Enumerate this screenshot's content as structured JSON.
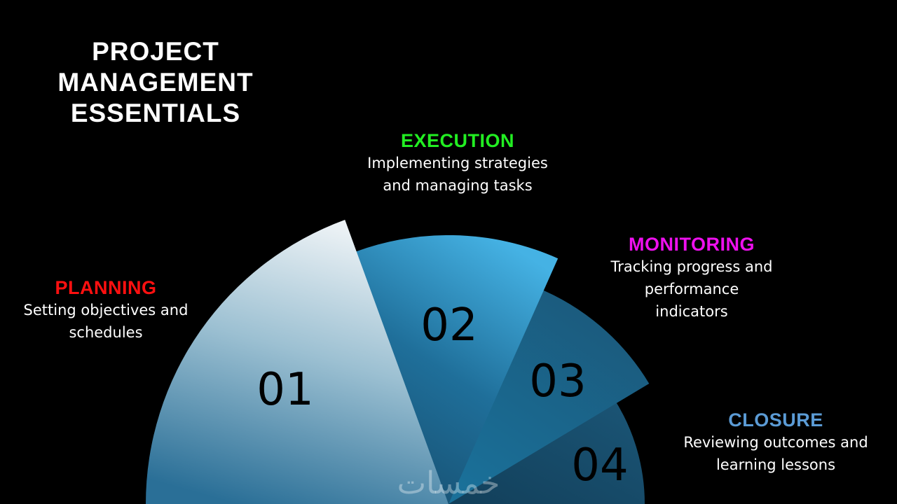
{
  "title": {
    "lines": [
      "PROJECT",
      "MANAGEMENT",
      "ESSENTIALS"
    ]
  },
  "stages": [
    {
      "number": "01",
      "heading": "PLANNING",
      "color": "#ff1010",
      "description": [
        "Setting objectives and",
        "schedules"
      ]
    },
    {
      "number": "02",
      "heading": "EXECUTION",
      "color": "#22ee22",
      "description": [
        "Implementing strategies",
        "and managing tasks"
      ]
    },
    {
      "number": "03",
      "heading": "MONITORING",
      "color": "#ee10ee",
      "description": [
        "Tracking progress and",
        "performance",
        "indicators"
      ]
    },
    {
      "number": "04",
      "heading": "CLOSURE",
      "color": "#5b9bd5",
      "description": [
        "Reviewing outcomes and",
        "learning lessons"
      ]
    }
  ],
  "watermark": "خمسات"
}
